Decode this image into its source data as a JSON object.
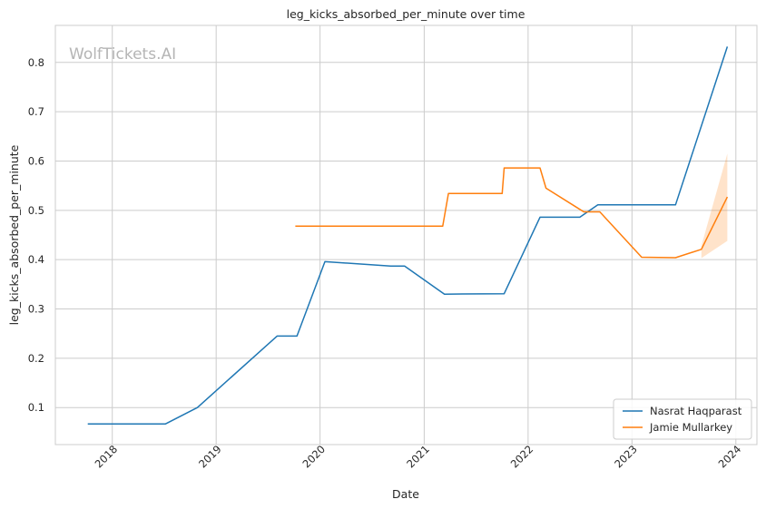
{
  "chart_data": {
    "type": "line",
    "title": "leg_kicks_absorbed_per_minute over time",
    "xlabel": "Date",
    "ylabel": "leg_kicks_absorbed_per_minute",
    "watermark": "WolfTickets.AI",
    "x_ticks": [
      "2018",
      "2019",
      "2020",
      "2021",
      "2022",
      "2023",
      "2024"
    ],
    "y_ticks": [
      0.1,
      0.2,
      0.3,
      0.4,
      0.5,
      0.6,
      0.7,
      0.8
    ],
    "xlim": [
      "2017-06-15",
      "2024-03-15"
    ],
    "ylim": [
      0.025,
      0.875
    ],
    "grid": true,
    "legend_position": "lower-right",
    "series": [
      {
        "name": "Nasrat Haqparast",
        "color": "#1f77b4",
        "points": [
          [
            "2017-10-07",
            0.067
          ],
          [
            "2018-07-07",
            0.067
          ],
          [
            "2018-10-27",
            0.1
          ],
          [
            "2019-08-03",
            0.245
          ],
          [
            "2019-10-12",
            0.245
          ],
          [
            "2020-01-18",
            0.396
          ],
          [
            "2020-09-05",
            0.387
          ],
          [
            "2020-10-24",
            0.387
          ],
          [
            "2021-03-13",
            0.33
          ],
          [
            "2021-10-09",
            0.331
          ],
          [
            "2022-02-12",
            0.486
          ],
          [
            "2022-07-02",
            0.486
          ],
          [
            "2022-09-03",
            0.511
          ],
          [
            "2023-06-03",
            0.511
          ],
          [
            "2023-12-02",
            0.832
          ]
        ]
      },
      {
        "name": "Jamie Mullarkey",
        "color": "#ff7f0e",
        "points": [
          [
            "2019-10-06",
            0.468
          ],
          [
            "2021-03-07",
            0.468
          ],
          [
            "2021-03-27",
            0.534
          ],
          [
            "2021-10-02",
            0.534
          ],
          [
            "2021-10-09",
            0.586
          ],
          [
            "2022-02-12",
            0.586
          ],
          [
            "2022-03-05",
            0.545
          ],
          [
            "2022-07-16",
            0.497
          ],
          [
            "2022-09-10",
            0.497
          ],
          [
            "2023-02-04",
            0.405
          ],
          [
            "2023-06-03",
            0.404
          ],
          [
            "2023-09-02",
            0.421
          ],
          [
            "2023-12-02",
            0.527
          ]
        ],
        "band": [
          [
            "2023-09-02",
            0.403,
            0.428
          ],
          [
            "2023-12-02",
            0.438,
            0.615
          ]
        ]
      }
    ]
  }
}
